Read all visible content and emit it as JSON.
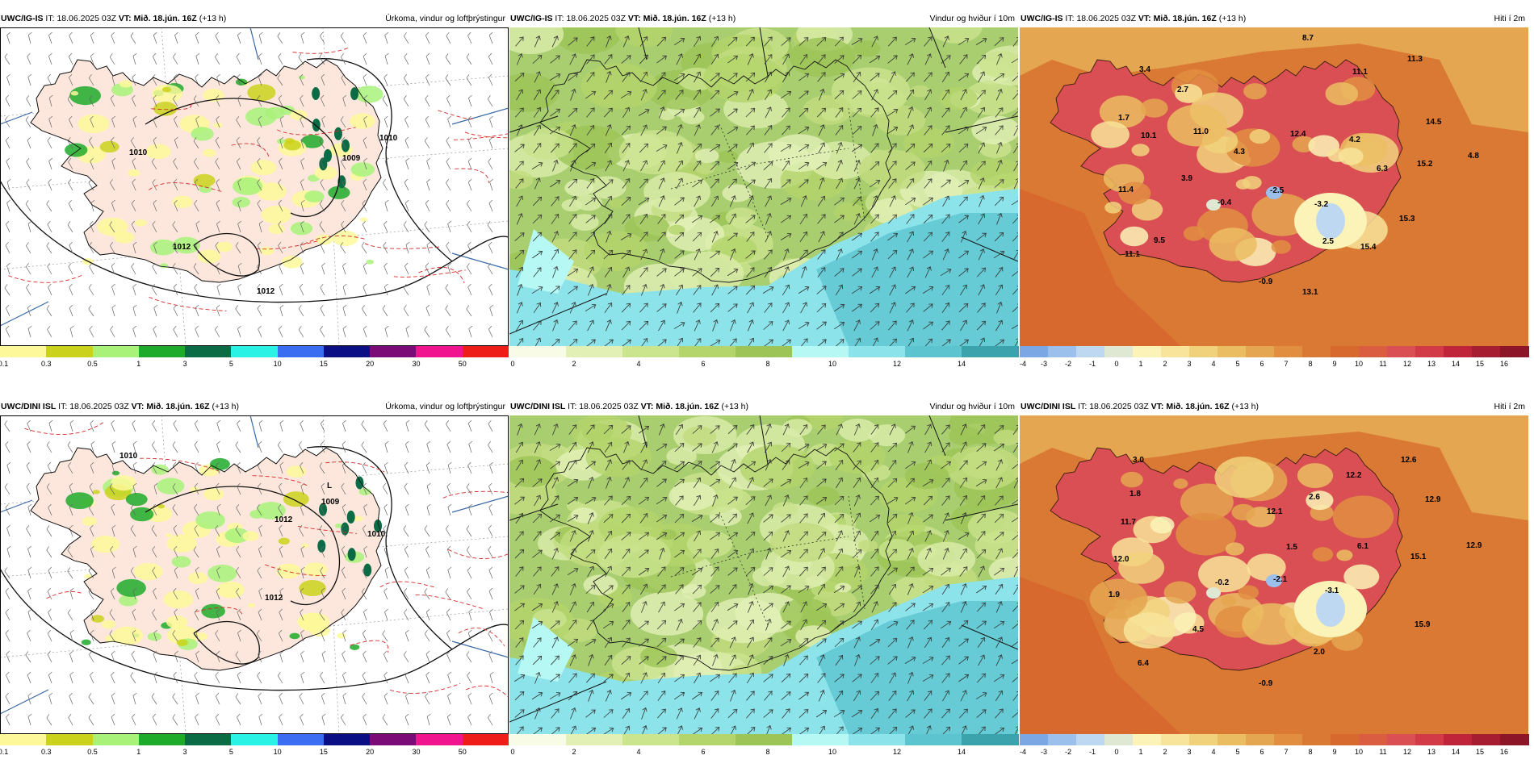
{
  "rows": [
    {
      "model": "UWC/IG-IS",
      "it_label": "IT:",
      "it": "18.06.2025 03Z",
      "vt_label": "VT:",
      "vt": "Mið. 18.jún. 16Z",
      "lead": "(+13 h)"
    },
    {
      "model": "UWC/DINI ISL",
      "it_label": "IT:",
      "it": "18.06.2025 03Z",
      "vt_label": "VT:",
      "vt": "Mið. 18.jún. 16Z",
      "lead": "(+13 h)"
    }
  ],
  "panel_titles": {
    "precip": "Úrkoma, vindur og loftþrýstingur",
    "wind": "Vindur og hviður í 10m",
    "temp": "Hiti í 2m"
  },
  "scales": {
    "precip": {
      "colors": [
        "#fdf99a",
        "#cbd21b",
        "#a8f27a",
        "#1eaa2a",
        "#0a6b45",
        "#2af3e6",
        "#3a6df1",
        "#0a0f84",
        "#7b0c77",
        "#f0148f",
        "#ef1d18"
      ],
      "ticks": [
        "0.1",
        "0.3",
        "0.5",
        "1",
        "3",
        "5",
        "10",
        "15",
        "20",
        "30",
        "50"
      ]
    },
    "wind": {
      "colors": [
        "#f8fbe6",
        "#e2f0b6",
        "#cbe48e",
        "#b4d46c",
        "#9cc456",
        "#b6f8f4",
        "#8ce4ea",
        "#5cc4cf",
        "#3aa3ab"
      ],
      "ticks": [
        "0",
        "2",
        "4",
        "6",
        "8",
        "10",
        "12",
        "14"
      ]
    },
    "temp": {
      "colors": [
        "#7ba7e4",
        "#9cc0ec",
        "#bfd8f1",
        "#dfe8d2",
        "#fcf3b8",
        "#f8e49a",
        "#f1d27c",
        "#ebbd63",
        "#e4a650",
        "#e18e41",
        "#da7934",
        "#d8692e",
        "#da5d42",
        "#d94f53",
        "#d33a47",
        "#bf243a",
        "#a61c30",
        "#8c1527"
      ],
      "ticks": [
        "-4",
        "-3",
        "-2",
        "-1",
        "0",
        "1",
        "2",
        "3",
        "4",
        "5",
        "6",
        "7",
        "8",
        "9",
        "10",
        "11",
        "12",
        "13",
        "14",
        "15",
        "16"
      ]
    }
  },
  "pressure_labels": {
    "row1": [
      "1009",
      "1010",
      "1012",
      "1012",
      "1010"
    ],
    "row2": [
      "1009",
      "1010",
      "1012",
      "1012",
      "1010"
    ],
    "low": "L"
  },
  "temp_values": {
    "row1": [
      "3.4",
      "8.7",
      "1.7",
      "2.7",
      "11.1",
      "11.3",
      "10.1",
      "11.0",
      "12.4",
      "14.5",
      "4.2",
      "4.8",
      "4.3",
      "3.9",
      "6.3",
      "15.2",
      "11.4",
      "-0.4",
      "-2.5",
      "-3.2",
      "15.3",
      "9.5",
      "2.5",
      "15.4",
      "11.1",
      "-0.9",
      "13.1"
    ],
    "row2": [
      "3.0",
      "12.6",
      "1.8",
      "12.2",
      "11.7",
      "2.6",
      "12.9",
      "12.1",
      "1.5",
      "6.1",
      "12.9",
      "15.1",
      "12.0",
      "-0.2",
      "-2.1",
      "-3.1",
      "1.9",
      "15.9",
      "4.5",
      "2.0",
      "6.4",
      "-0.9"
    ]
  }
}
